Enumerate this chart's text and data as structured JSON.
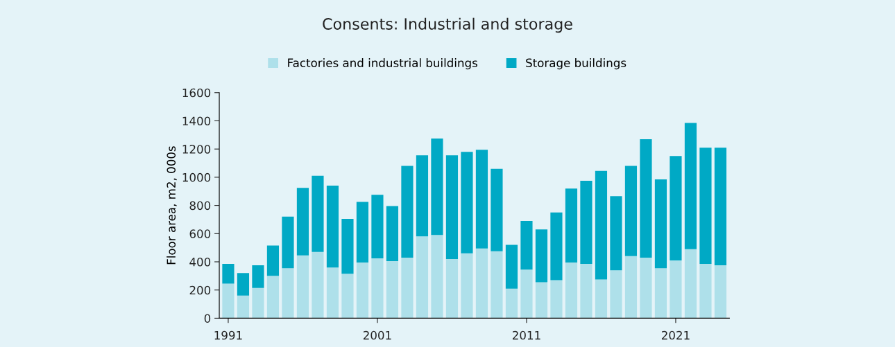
{
  "chart_data": {
    "type": "bar",
    "title": "Consents: Industrial and storage",
    "ylabel": "Floor area, m2, 000s",
    "categories": [
      "1991",
      null,
      null,
      null,
      null,
      null,
      null,
      null,
      null,
      null,
      "2001",
      null,
      null,
      null,
      null,
      null,
      null,
      null,
      null,
      null,
      "2011",
      null,
      null,
      null,
      null,
      null,
      null,
      null,
      null,
      null,
      "2021",
      null,
      null,
      null
    ],
    "series": [
      {
        "name": "Factories and industrial buildings",
        "color": "#aee0ea",
        "values": [
          245,
          160,
          215,
          300,
          355,
          445,
          470,
          360,
          315,
          395,
          425,
          405,
          430,
          580,
          590,
          420,
          460,
          495,
          475,
          210,
          345,
          255,
          270,
          395,
          385,
          275,
          340,
          440,
          430,
          355,
          410,
          490,
          385,
          375
        ]
      },
      {
        "name": "Storage buildings",
        "color": "#00a9c5",
        "values": [
          140,
          160,
          160,
          215,
          365,
          480,
          540,
          580,
          390,
          430,
          450,
          390,
          650,
          575,
          685,
          735,
          720,
          700,
          585,
          310,
          345,
          375,
          480,
          525,
          590,
          770,
          525,
          640,
          840,
          630,
          740,
          895,
          825,
          835
        ]
      }
    ],
    "stacked": true,
    "ylim": [
      0,
      1600
    ],
    "yticks": [
      0,
      200,
      400,
      600,
      800,
      1000,
      1200,
      1400,
      1600
    ],
    "grid": false,
    "legend": "top"
  }
}
